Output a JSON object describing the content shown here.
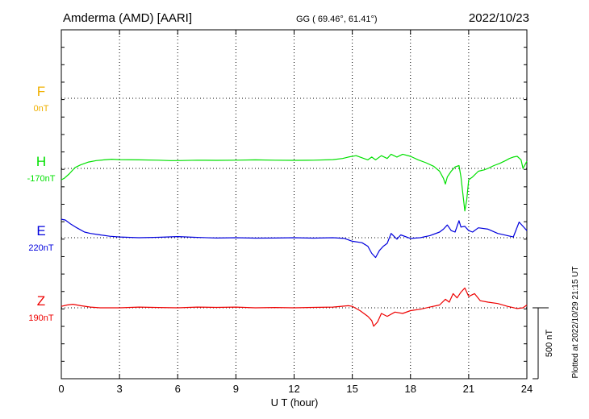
{
  "header": {
    "station": "Amderma (AMD)  [AARI]",
    "coords": "GG ( 69.46°,  61.41°)",
    "date": "2022/10/23"
  },
  "side_note": "Plotted at 2022/10/29 21:15 UT",
  "scale_label": "500 nT",
  "colors": {
    "F": "#f0b000",
    "H": "#00e000",
    "E": "#0000dd",
    "Z": "#ee0000",
    "axis": "#000000"
  },
  "chart_data": {
    "type": "line",
    "xlabel": "U T (hour)",
    "xlim": [
      0,
      24
    ],
    "xticks": [
      0,
      3,
      6,
      9,
      12,
      15,
      18,
      21,
      24
    ],
    "scale_bar_nT": 500,
    "grid": "dotted",
    "series": [
      {
        "name": "F",
        "baseline_label": "0nT",
        "x": [],
        "y": []
      },
      {
        "name": "H",
        "baseline_label": "-170nT",
        "x": [
          0,
          0.15,
          0.4,
          0.7,
          1.0,
          1.4,
          1.8,
          2.2,
          2.6,
          3.0,
          4.0,
          5.0,
          5.6,
          6.0,
          7.0,
          8.0,
          9.0,
          10.0,
          11.0,
          12.0,
          13.0,
          14.0,
          14.5,
          14.8,
          15.2,
          15.5,
          15.8,
          16.0,
          16.2,
          16.5,
          16.8,
          17.0,
          17.3,
          17.6,
          18.0,
          18.4,
          18.8,
          19.2,
          19.5,
          19.7,
          19.8,
          19.9,
          20.1,
          20.3,
          20.5,
          20.6,
          20.7,
          20.8,
          20.9,
          21.0,
          21.2,
          21.5,
          21.8,
          22.0,
          22.3,
          22.6,
          22.9,
          23.1,
          23.3,
          23.5,
          23.7,
          23.8,
          24.0
        ],
        "y": [
          -80,
          -70,
          -40,
          5,
          25,
          45,
          55,
          60,
          65,
          62,
          60,
          58,
          55,
          55,
          58,
          57,
          58,
          60,
          58,
          57,
          58,
          62,
          70,
          80,
          90,
          75,
          60,
          80,
          60,
          90,
          70,
          100,
          80,
          100,
          85,
          60,
          40,
          15,
          -20,
          -70,
          -110,
          -60,
          -20,
          10,
          20,
          -60,
          -180,
          -300,
          -220,
          -80,
          -60,
          -20,
          -10,
          0,
          20,
          35,
          55,
          70,
          80,
          85,
          60,
          0,
          50
        ]
      },
      {
        "name": "E",
        "baseline_label": "220nT",
        "x": [
          0,
          0.2,
          0.5,
          0.8,
          1.2,
          1.5,
          2.0,
          2.5,
          3.0,
          4.0,
          5.0,
          6.0,
          7.0,
          8.0,
          9.0,
          10.0,
          11.0,
          12.0,
          13.0,
          14.0,
          14.6,
          15.0,
          15.5,
          15.8,
          16.0,
          16.2,
          16.4,
          16.6,
          16.8,
          17.0,
          17.3,
          17.5,
          18.0,
          18.5,
          19.0,
          19.5,
          19.7,
          19.9,
          20.1,
          20.3,
          20.5,
          20.6,
          20.8,
          21.0,
          21.2,
          21.5,
          22.0,
          22.5,
          23.0,
          23.3,
          23.6,
          23.8,
          24.0
        ],
        "y": [
          130,
          125,
          95,
          70,
          40,
          30,
          20,
          10,
          5,
          0,
          3,
          8,
          2,
          -2,
          0,
          -3,
          -2,
          0,
          -3,
          0,
          -5,
          -25,
          -35,
          -60,
          -110,
          -140,
          -90,
          -60,
          -40,
          30,
          -10,
          20,
          -5,
          0,
          15,
          40,
          60,
          90,
          50,
          40,
          120,
          75,
          80,
          50,
          40,
          70,
          60,
          30,
          15,
          5,
          110,
          80,
          50
        ]
      },
      {
        "name": "Z",
        "baseline_label": "190nT",
        "x": [
          0,
          0.3,
          0.6,
          1.0,
          1.5,
          2.0,
          3.0,
          4.0,
          5.0,
          6.0,
          7.0,
          8.0,
          9.0,
          10.0,
          11.0,
          12.0,
          13.0,
          14.0,
          14.8,
          15.0,
          15.4,
          15.8,
          16.0,
          16.1,
          16.3,
          16.5,
          16.8,
          17.2,
          17.6,
          18.0,
          18.5,
          19.0,
          19.5,
          19.8,
          20.0,
          20.2,
          20.4,
          20.6,
          20.8,
          21.0,
          21.3,
          21.6,
          22.0,
          22.5,
          23.0,
          23.5,
          23.8,
          24.0
        ],
        "y": [
          10,
          20,
          25,
          15,
          5,
          0,
          0,
          5,
          2,
          0,
          5,
          3,
          5,
          0,
          2,
          0,
          3,
          5,
          15,
          10,
          -20,
          -60,
          -90,
          -130,
          -100,
          -40,
          -60,
          -30,
          -40,
          -20,
          -10,
          5,
          20,
          60,
          40,
          100,
          70,
          110,
          140,
          80,
          100,
          50,
          40,
          30,
          10,
          -5,
          0,
          20
        ]
      }
    ]
  }
}
